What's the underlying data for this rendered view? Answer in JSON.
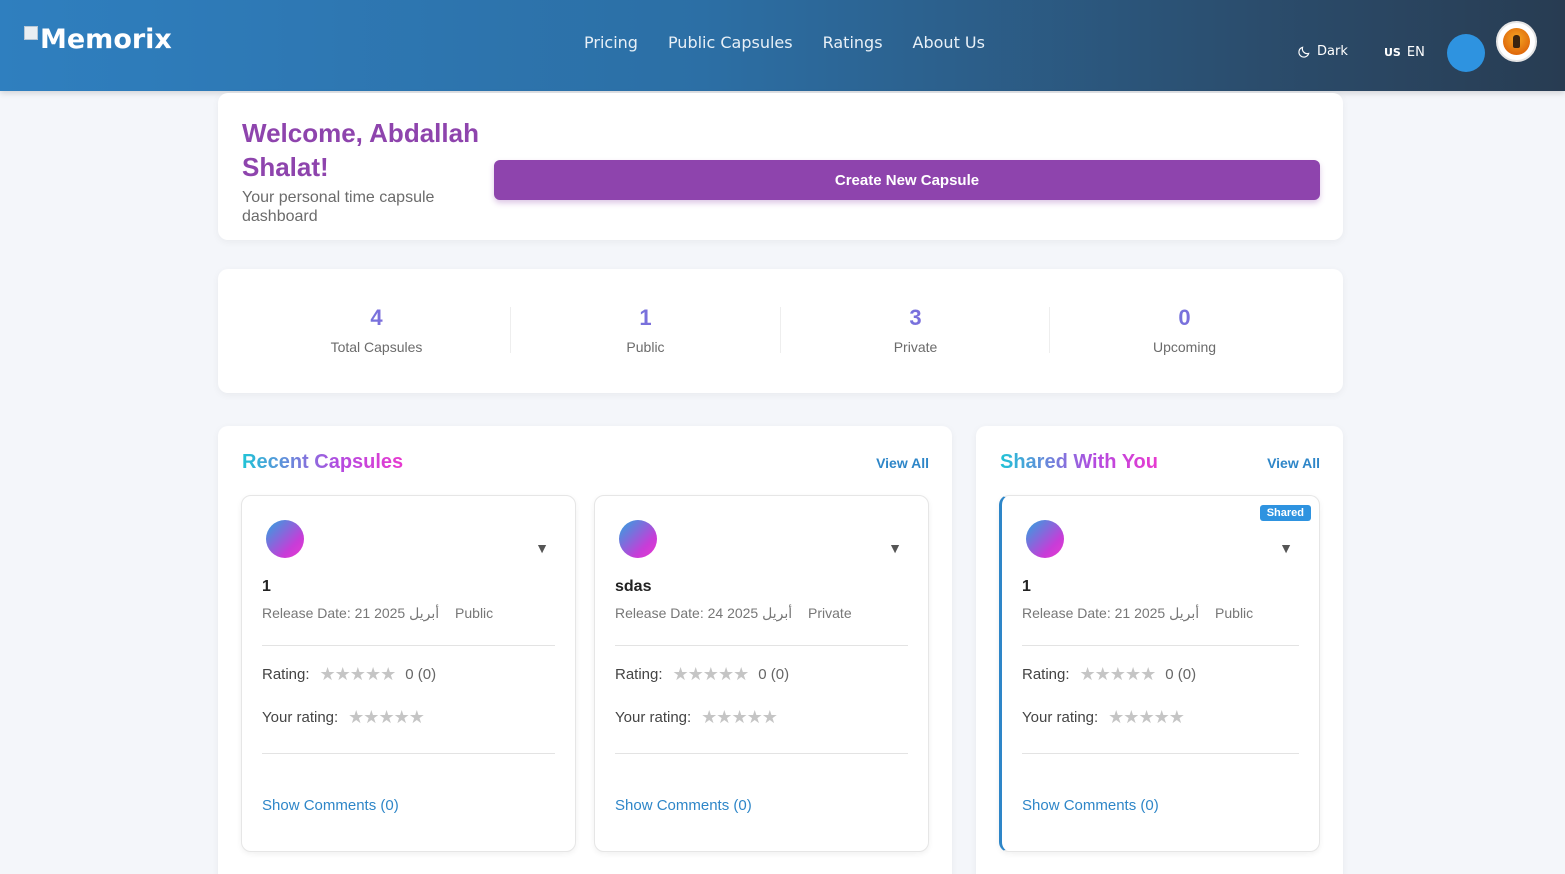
{
  "header": {
    "logo": "Memorix",
    "nav": [
      "Pricing",
      "Public Capsules",
      "Ratings",
      "About Us"
    ],
    "theme_label": "Dark",
    "lang_flag": "US",
    "lang_label": "EN"
  },
  "welcome": {
    "title": "Welcome, Abdallah Shalat!",
    "subtitle": "Your personal time capsule dashboard",
    "create_button": "Create New Capsule"
  },
  "stats": [
    {
      "value": "4",
      "label": "Total Capsules"
    },
    {
      "value": "1",
      "label": "Public"
    },
    {
      "value": "3",
      "label": "Private"
    },
    {
      "value": "0",
      "label": "Upcoming"
    }
  ],
  "recent": {
    "title": "Recent Capsules",
    "view_all": "View All",
    "capsules": [
      {
        "title": "1",
        "release_label": "Release Date:",
        "release_date": "21 أبريل 2025",
        "visibility": "Public",
        "rating_label": "Rating:",
        "rating_value": "0 (0)",
        "your_rating_label": "Your rating:",
        "comments": "Show Comments (0)"
      },
      {
        "title": "sdas",
        "release_label": "Release Date:",
        "release_date": "24 أبريل 2025",
        "visibility": "Private",
        "rating_label": "Rating:",
        "rating_value": "0 (0)",
        "your_rating_label": "Your rating:",
        "comments": "Show Comments (0)"
      }
    ]
  },
  "shared": {
    "title": "Shared With You",
    "view_all": "View All",
    "badge": "Shared",
    "capsule": {
      "title": "1",
      "release_label": "Release Date:",
      "release_date": "21 أبريل 2025",
      "visibility": "Public",
      "rating_label": "Rating:",
      "rating_value": "0 (0)",
      "your_rating_label": "Your rating:",
      "comments": "Show Comments (0)"
    }
  },
  "stars": "★★★★★",
  "caret": "▼",
  "colors": {
    "accent": "#8e44ad",
    "link": "#2e86c8",
    "header_start": "#2f7fbf",
    "header_end": "#283c52"
  },
  "icons": [
    "moon-icon",
    "avatar-image",
    "capsule-icon",
    "chevron-down-icon"
  ]
}
